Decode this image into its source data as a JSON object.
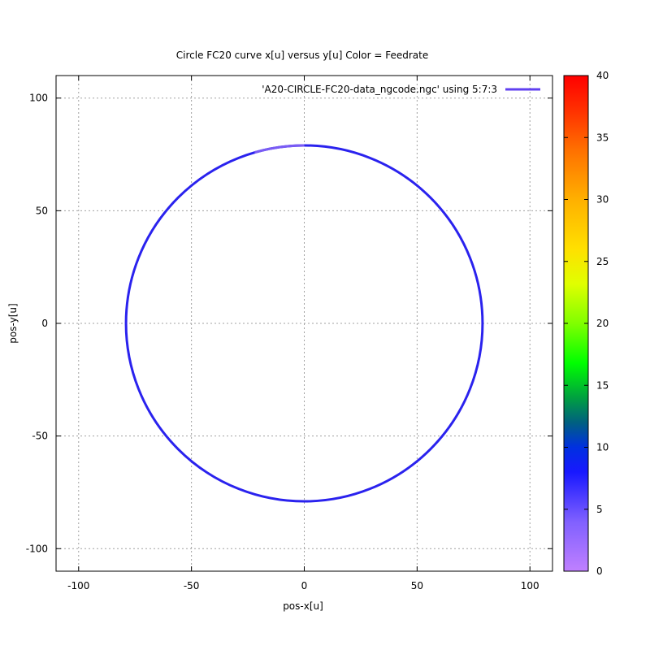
{
  "chart_data": {
    "type": "line",
    "title": "Circle FC20 curve x[u] versus y[u] Color = Feedrate",
    "xlabel": "pos-x[u]",
    "ylabel": "pos-y[u]",
    "xlim": [
      -110,
      110
    ],
    "ylim": [
      -110,
      110
    ],
    "xticks": [
      -100,
      -50,
      0,
      50,
      100
    ],
    "yticks": [
      -100,
      -50,
      0,
      50,
      100
    ],
    "grid": true,
    "legend_position": "top-right",
    "series": [
      {
        "name": "'A20-CIRCLE-FC20-data_ngcode.ngc' using 5:7:3",
        "shape": "circle",
        "center": [
          0,
          0
        ],
        "radius": 79,
        "color_value": 8,
        "low_feed_segment": {
          "x_from": -22,
          "x_to": 0,
          "color_value": 5
        }
      }
    ],
    "colorbar": {
      "range": [
        0,
        40
      ],
      "ticks": [
        0,
        5,
        10,
        15,
        20,
        25,
        30,
        35,
        40
      ]
    }
  }
}
